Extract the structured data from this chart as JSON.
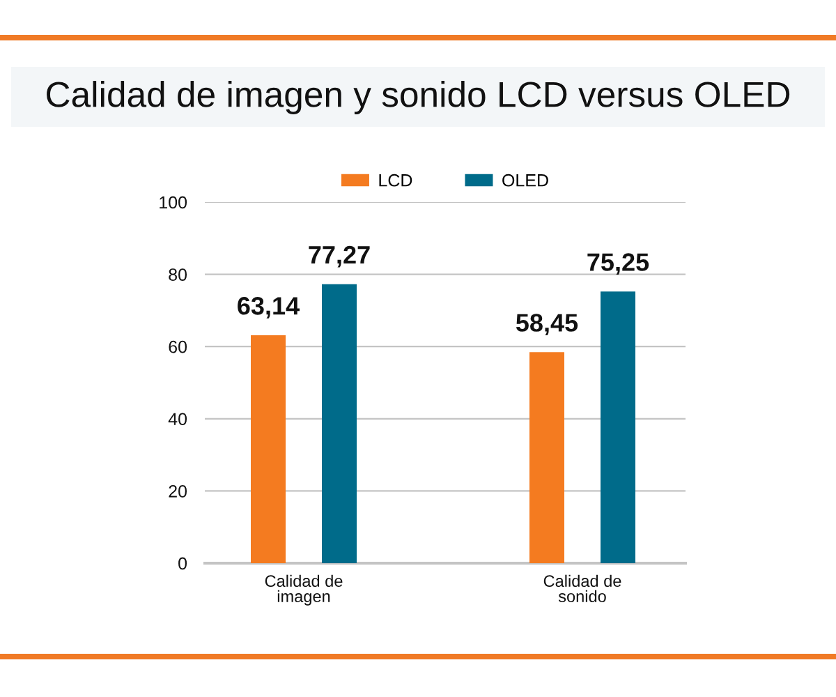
{
  "chart_data": {
    "type": "bar",
    "title": "Calidad de imagen y sonido LCD versus OLED",
    "categories": [
      "Calidad de\nimagen",
      "Calidad de\nsonido"
    ],
    "series": [
      {
        "name": "LCD",
        "color": "#f47b20",
        "values": [
          63.14,
          58.45
        ],
        "value_labels": [
          "63,14",
          "58,45"
        ]
      },
      {
        "name": "OLED",
        "color": "#006b8a",
        "values": [
          77.27,
          75.25
        ],
        "value_labels": [
          "77,27",
          "75,25"
        ]
      }
    ],
    "ylim": [
      0,
      100
    ],
    "yticks": [
      0,
      20,
      40,
      60,
      80,
      100
    ],
    "grid": "y",
    "legend": "top"
  }
}
